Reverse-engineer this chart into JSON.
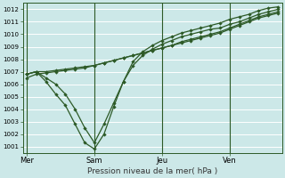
{
  "xlabel": "Pression niveau de la mer( hPa )",
  "bg_color": "#cce8e8",
  "grid_color_major": "#aaaaaa",
  "grid_color_minor": "#cccccc",
  "line_color": "#2d5a27",
  "ylim": [
    1000.5,
    1012.5
  ],
  "yticks": [
    1001,
    1002,
    1003,
    1004,
    1005,
    1006,
    1007,
    1008,
    1009,
    1010,
    1011,
    1012
  ],
  "day_labels": [
    "Mer",
    "Sam",
    "Jeu",
    "Ven"
  ],
  "day_positions": [
    0.0,
    3.5,
    7.0,
    10.5
  ],
  "xlim": [
    -0.2,
    13.2
  ],
  "series1_x": [
    0.0,
    0.5,
    1.0,
    1.5,
    2.0,
    2.5,
    3.0,
    3.5,
    4.0,
    4.5,
    5.0,
    5.5,
    6.0,
    6.5,
    7.0,
    7.5,
    8.0,
    8.5,
    9.0,
    9.5,
    10.0,
    10.5,
    11.0,
    11.5,
    12.0,
    12.5,
    13.0
  ],
  "series1_y": [
    1006.8,
    1007.0,
    1007.0,
    1007.1,
    1007.2,
    1007.3,
    1007.4,
    1007.5,
    1007.7,
    1007.9,
    1008.1,
    1008.3,
    1008.5,
    1008.7,
    1008.9,
    1009.1,
    1009.3,
    1009.5,
    1009.7,
    1009.9,
    1010.1,
    1010.4,
    1010.7,
    1011.0,
    1011.3,
    1011.5,
    1011.7
  ],
  "series2_x": [
    0.0,
    0.5,
    1.0,
    1.5,
    2.0,
    2.5,
    3.0,
    3.5,
    4.0,
    4.5,
    5.0,
    5.5,
    6.0,
    6.5,
    7.0,
    7.5,
    8.0,
    8.5,
    9.0,
    9.5,
    10.0,
    10.5,
    11.0,
    11.5,
    12.0,
    12.5,
    13.0
  ],
  "series2_y": [
    1006.5,
    1006.8,
    1006.9,
    1007.0,
    1007.1,
    1007.2,
    1007.3,
    1007.5,
    1007.7,
    1007.9,
    1008.1,
    1008.3,
    1008.5,
    1008.7,
    1008.9,
    1009.1,
    1009.4,
    1009.6,
    1009.8,
    1010.0,
    1010.2,
    1010.5,
    1010.8,
    1011.1,
    1011.4,
    1011.6,
    1011.8
  ],
  "series3_x": [
    0.0,
    0.5,
    1.0,
    1.5,
    2.0,
    2.5,
    3.0,
    3.5,
    4.0,
    4.5,
    5.0,
    5.5,
    6.0,
    6.5,
    7.0,
    7.5,
    8.0,
    8.5,
    9.0,
    9.5,
    10.0,
    10.5,
    11.0,
    11.5,
    12.0,
    12.5,
    13.0
  ],
  "series3_y": [
    1006.8,
    1007.0,
    1006.5,
    1006.0,
    1005.2,
    1004.0,
    1002.5,
    1001.3,
    1002.8,
    1004.5,
    1006.2,
    1007.5,
    1008.3,
    1008.8,
    1009.2,
    1009.5,
    1009.8,
    1010.0,
    1010.2,
    1010.4,
    1010.5,
    1010.8,
    1011.0,
    1011.3,
    1011.6,
    1011.8,
    1012.0
  ],
  "series4_x": [
    0.0,
    0.5,
    1.0,
    1.5,
    2.0,
    2.5,
    3.0,
    3.5,
    4.0,
    4.5,
    5.0,
    5.5,
    6.0,
    6.5,
    7.0,
    7.5,
    8.0,
    8.5,
    9.0,
    9.5,
    10.0,
    10.5,
    11.0,
    11.5,
    12.0,
    12.5,
    13.0
  ],
  "series4_y": [
    1006.8,
    1007.0,
    1006.2,
    1005.2,
    1004.3,
    1002.8,
    1001.3,
    1000.8,
    1002.0,
    1004.2,
    1006.2,
    1007.8,
    1008.6,
    1009.1,
    1009.5,
    1009.8,
    1010.1,
    1010.3,
    1010.5,
    1010.7,
    1010.9,
    1011.2,
    1011.4,
    1011.6,
    1011.9,
    1012.1,
    1012.2
  ]
}
